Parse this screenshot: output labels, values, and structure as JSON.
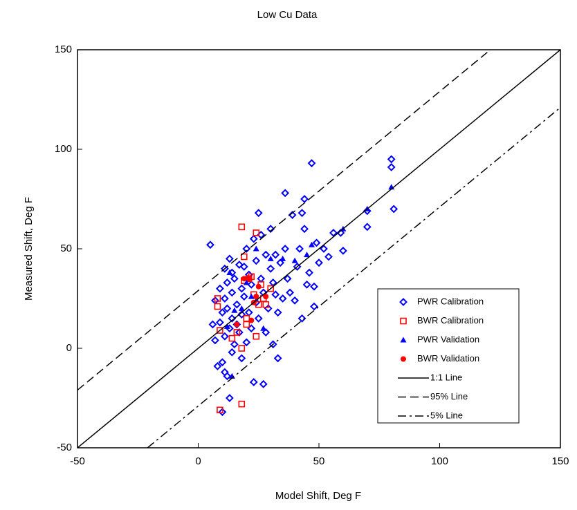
{
  "chart_data": {
    "type": "scatter",
    "title": "Low Cu Data",
    "x_label": "Model Shift, Deg F",
    "y_label": "Measured Shift, Deg F",
    "xlim": [
      -50,
      150
    ],
    "ylim": [
      -50,
      150
    ],
    "xticks": [
      -50,
      0,
      50,
      100,
      150
    ],
    "yticks": [
      -50,
      0,
      50,
      100,
      150
    ],
    "legend": "lower right",
    "series": [
      {
        "name": "PWR Calibration",
        "marker": "diamond",
        "color": "#0000ff",
        "x": [
          5,
          6,
          7,
          7,
          8,
          9,
          9,
          10,
          10,
          10,
          11,
          11,
          11,
          11,
          12,
          12,
          12,
          13,
          13,
          13,
          14,
          14,
          14,
          14,
          15,
          15,
          16,
          16,
          17,
          17,
          18,
          18,
          18,
          19,
          19,
          20,
          20,
          21,
          21,
          22,
          22,
          23,
          23,
          24,
          24,
          25,
          25,
          26,
          26,
          27,
          27,
          28,
          28,
          29,
          30,
          30,
          31,
          31,
          32,
          32,
          33,
          33,
          34,
          35,
          36,
          36,
          37,
          38,
          39,
          40,
          41,
          42,
          43,
          43,
          44,
          44,
          45,
          46,
          47,
          48,
          48,
          49,
          50,
          52,
          54,
          56,
          59,
          60,
          70,
          70,
          80,
          80,
          81
        ],
        "values": [
          52,
          12,
          24,
          4,
          -9,
          30,
          13,
          -7,
          18,
          -32,
          40,
          25,
          6,
          -12,
          33,
          20,
          -14,
          -25,
          10,
          45,
          38,
          28,
          15,
          -2,
          2,
          35,
          22,
          12,
          42,
          8,
          30,
          17,
          -5,
          41,
          26,
          50,
          3,
          37,
          18,
          32,
          10,
          55,
          -17,
          44,
          23,
          68,
          15,
          57,
          35,
          -18,
          28,
          47,
          8,
          20,
          60,
          40,
          33,
          2,
          47,
          27,
          -5,
          18,
          43,
          25,
          50,
          78,
          35,
          28,
          67,
          24,
          41,
          50,
          15,
          68,
          75,
          60,
          32,
          38,
          93,
          21,
          31,
          53,
          43,
          50,
          46,
          58,
          58,
          49,
          69,
          61,
          95,
          91,
          70
        ]
      },
      {
        "name": "BWR Calibration",
        "marker": "square",
        "color": "#ff0000",
        "x": [
          8,
          8,
          9,
          9,
          14,
          16,
          18,
          18,
          18,
          19,
          19,
          20,
          21,
          22,
          23,
          24,
          24,
          25,
          26,
          27,
          28,
          30,
          20
        ],
        "values": [
          25,
          21,
          -31,
          9,
          5,
          8,
          -28,
          0,
          61,
          34,
          46,
          12,
          35,
          36,
          27,
          58,
          6,
          22,
          32,
          25,
          22,
          30,
          15
        ]
      },
      {
        "name": "PWR Validation",
        "marker": "triangle",
        "color": "#0000ff",
        "x": [
          12,
          13,
          14,
          15,
          18,
          20,
          22,
          24,
          27,
          30,
          35,
          40,
          45,
          47,
          60,
          70,
          80
        ],
        "values": [
          11,
          38,
          -14,
          19,
          20,
          33,
          26,
          50,
          10,
          45,
          45,
          44,
          47,
          52,
          60,
          70,
          81
        ]
      },
      {
        "name": "BWR Validation",
        "marker": "circle",
        "color": "#ff0000",
        "x": [
          16,
          19,
          21,
          22,
          24,
          25,
          28,
          23
        ],
        "values": [
          12,
          35,
          35,
          14,
          26,
          31,
          26,
          23
        ]
      },
      {
        "name": "1:1 Line",
        "line": "solid",
        "color": "#000000",
        "x": [
          -50,
          150
        ],
        "values": [
          -50,
          150
        ]
      },
      {
        "name": "95% Line",
        "line": "dashed",
        "color": "#000000",
        "x": [
          -50,
          121
        ],
        "values": [
          -21,
          150
        ]
      },
      {
        "name": "5% Line",
        "line": "dashdot",
        "color": "#000000",
        "x": [
          -21,
          150
        ],
        "values": [
          -50,
          121
        ]
      }
    ]
  }
}
